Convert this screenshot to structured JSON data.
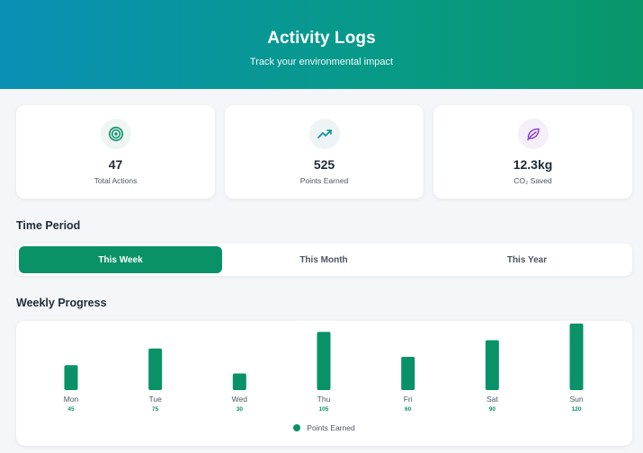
{
  "header": {
    "title": "Activity Logs",
    "subtitle": "Track your environmental impact"
  },
  "stats": [
    {
      "value": "47",
      "label": "Total Actions",
      "icon": "target-icon",
      "color": "#099268",
      "bg": "#eef5f3"
    },
    {
      "value": "525",
      "label": "Points Earned",
      "icon": "trending-up-icon",
      "color": "#0e8fa3",
      "bg": "#eef4f6"
    },
    {
      "value": "12.3kg",
      "label": "CO₂ Saved",
      "icon": "leaf-icon",
      "color": "#8b3fd1",
      "bg": "#f4eff8"
    }
  ],
  "period": {
    "title": "Time Period",
    "options": [
      "This Week",
      "This Month",
      "This Year"
    ],
    "selected": "This Week"
  },
  "progress": {
    "title": "Weekly Progress"
  },
  "chart_data": {
    "type": "bar",
    "categories": [
      "Mon",
      "Tue",
      "Wed",
      "Thu",
      "Fri",
      "Sat",
      "Sun"
    ],
    "series": [
      {
        "name": "Points Earned",
        "values": [
          45,
          75,
          30,
          105,
          60,
          90,
          120
        ],
        "color": "#099268"
      }
    ],
    "value_labels": [
      "45",
      "75",
      "30",
      "105",
      "60",
      "90",
      "120"
    ],
    "ylim": [
      0,
      120
    ],
    "grid": false,
    "legend": "bottom-center"
  }
}
